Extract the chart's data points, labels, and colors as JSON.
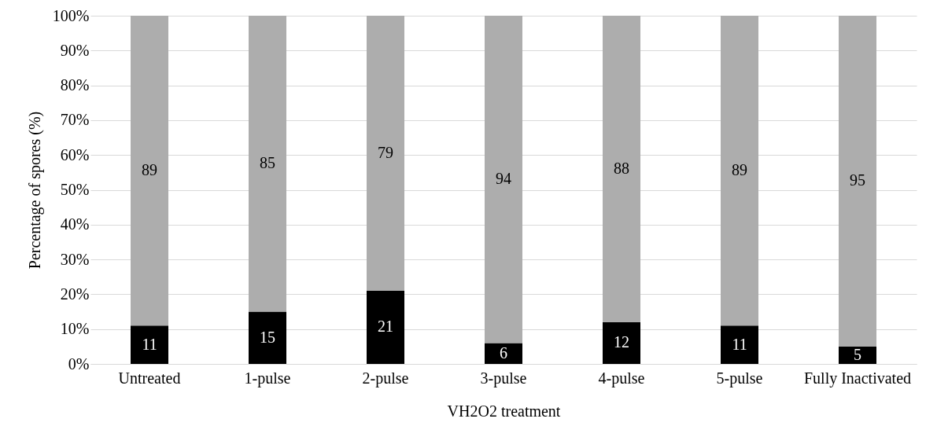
{
  "chart_data": {
    "type": "bar",
    "stacked": true,
    "xlabel": "VH2O2 treatment",
    "ylabel": "Percentage of spores (%)",
    "categories": [
      "Untreated",
      "1-pulse",
      "2-pulse",
      "3-pulse",
      "4-pulse",
      "5-pulse",
      "Fully Inactivated"
    ],
    "series": [
      {
        "color": "#000000",
        "values": [
          11,
          15,
          21,
          6,
          12,
          11,
          5
        ]
      },
      {
        "color": "#adadad",
        "values": [
          89,
          85,
          79,
          94,
          88,
          89,
          95
        ]
      }
    ],
    "ylim": [
      0,
      100
    ],
    "yticks": [
      {
        "value": 0,
        "label": "0%"
      },
      {
        "value": 10,
        "label": "10%"
      },
      {
        "value": 20,
        "label": "20%"
      },
      {
        "value": 30,
        "label": "30%"
      },
      {
        "value": 40,
        "label": "40%"
      },
      {
        "value": 50,
        "label": "50%"
      },
      {
        "value": 60,
        "label": "60%"
      },
      {
        "value": 70,
        "label": "70%"
      },
      {
        "value": 80,
        "label": "80%"
      },
      {
        "value": 90,
        "label": "90%"
      },
      {
        "value": 100,
        "label": "100%"
      }
    ],
    "grid": "y",
    "data_labels": true
  }
}
